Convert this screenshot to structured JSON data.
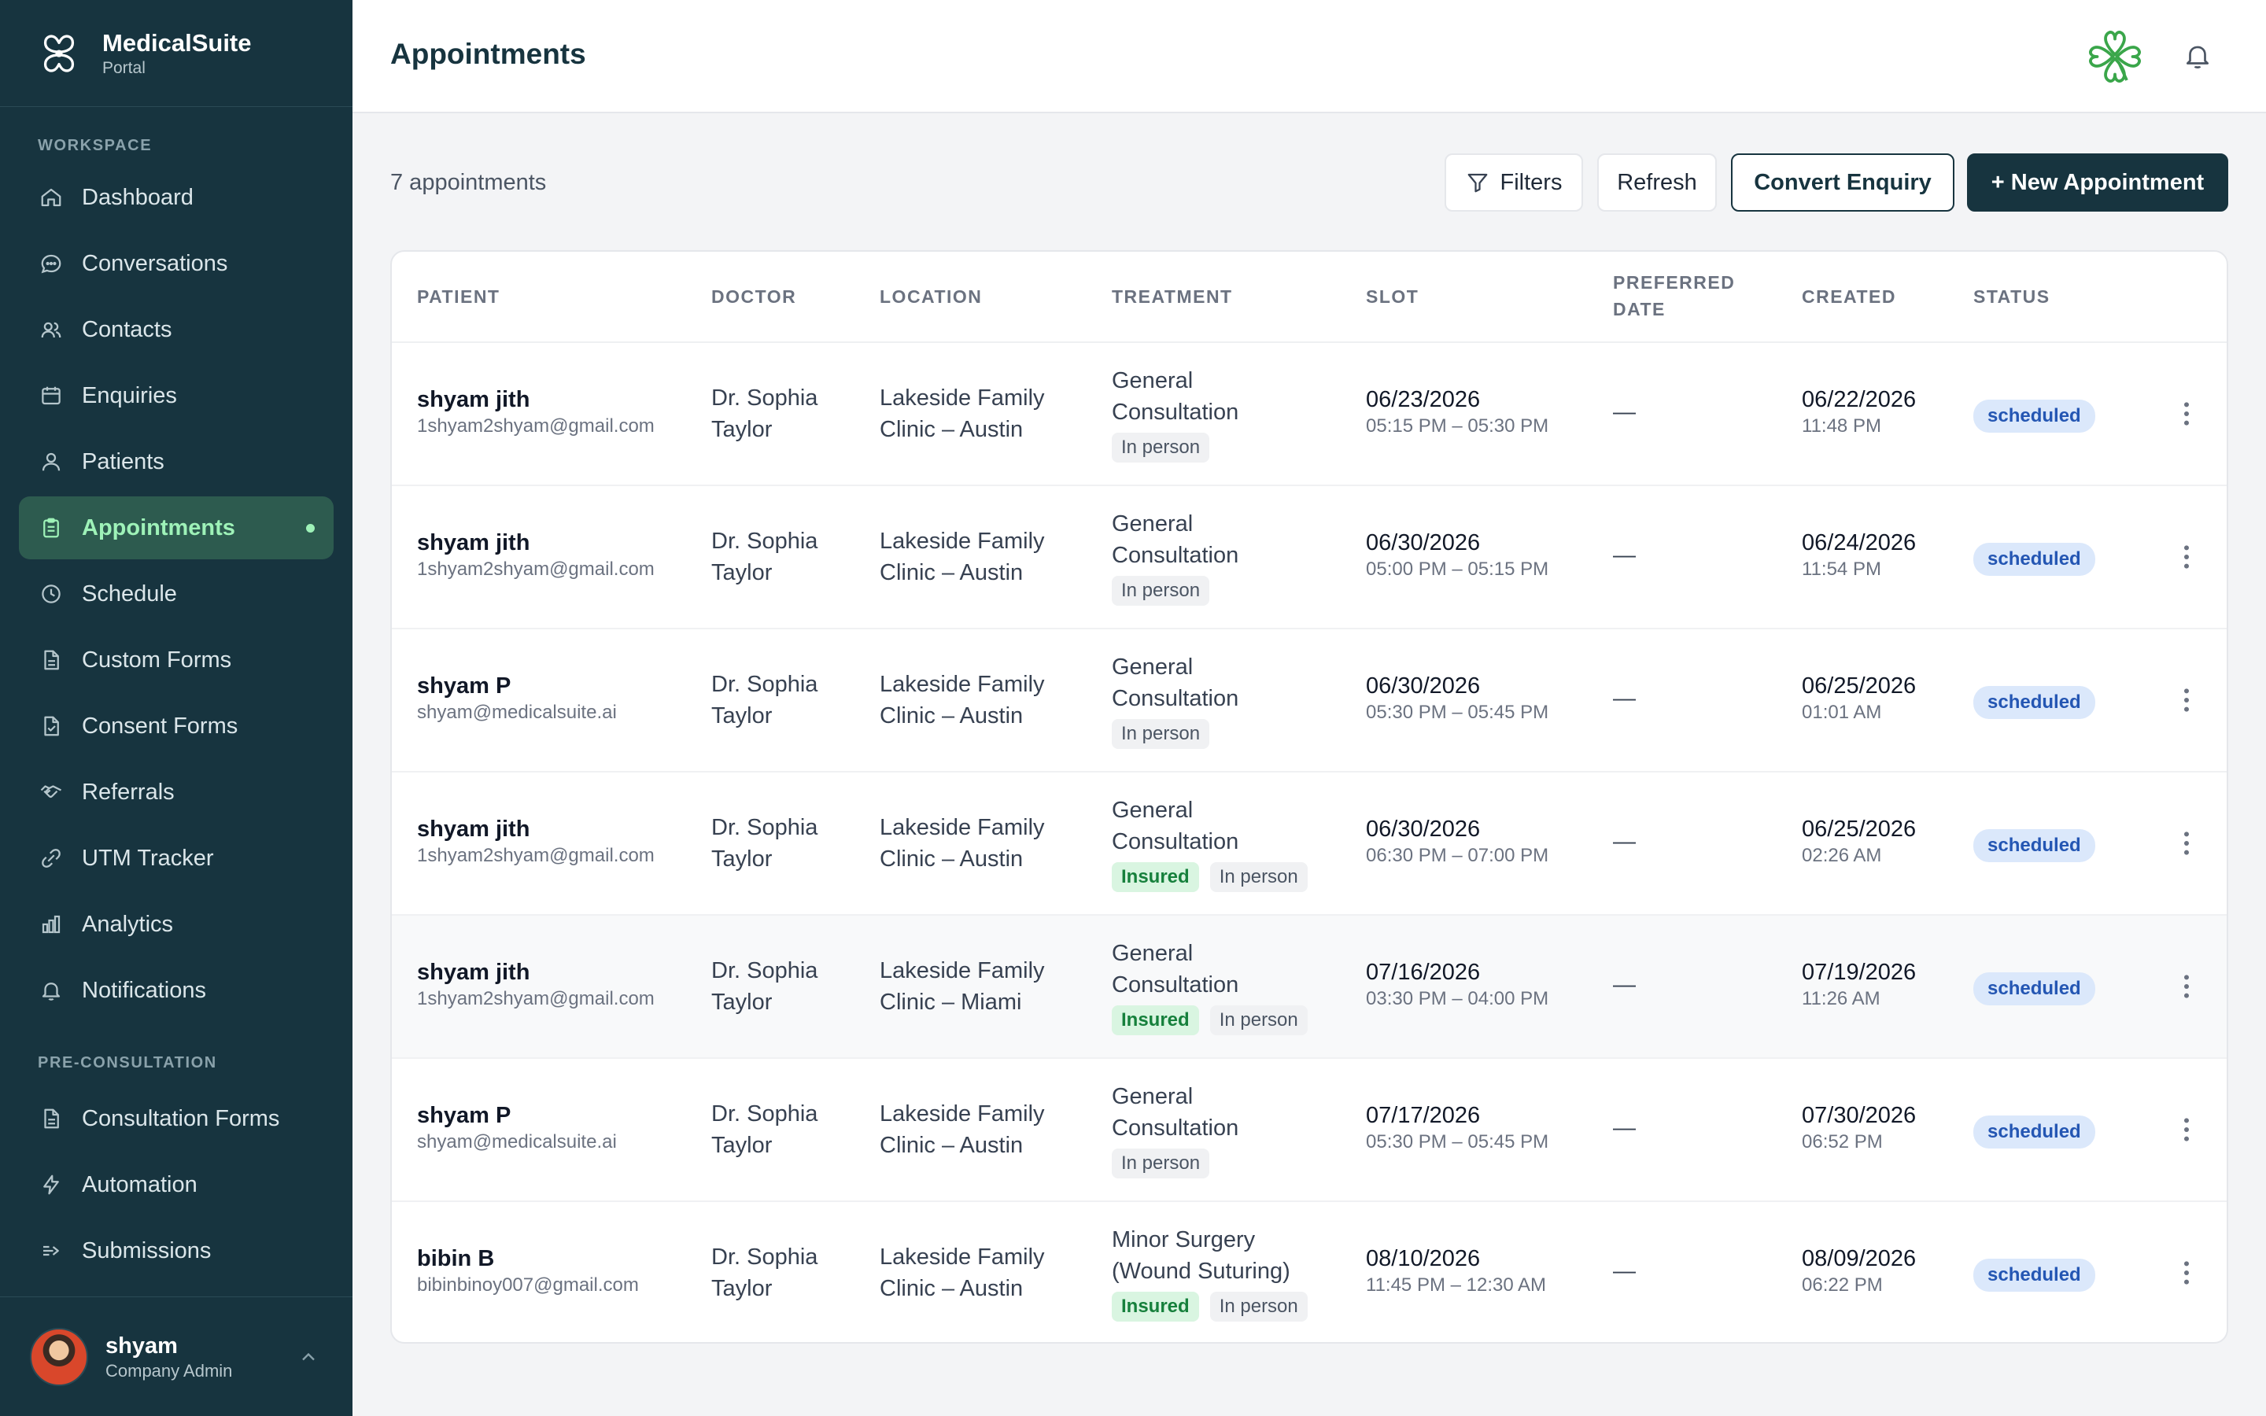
{
  "brand": {
    "name": "MedicalSuite",
    "sub": "Portal"
  },
  "sidebar": {
    "workspace_label": "WORKSPACE",
    "items": [
      {
        "label": "Dashboard",
        "icon": "home-icon"
      },
      {
        "label": "Conversations",
        "icon": "chat-icon"
      },
      {
        "label": "Contacts",
        "icon": "contacts-icon"
      },
      {
        "label": "Enquiries",
        "icon": "calendar-icon"
      },
      {
        "label": "Patients",
        "icon": "user-icon"
      },
      {
        "label": "Appointments",
        "icon": "clipboard-icon",
        "active": true
      },
      {
        "label": "Schedule",
        "icon": "clock-icon"
      },
      {
        "label": "Custom Forms",
        "icon": "document-icon"
      },
      {
        "label": "Consent Forms",
        "icon": "document-check-icon"
      },
      {
        "label": "Referrals",
        "icon": "handshake-icon"
      },
      {
        "label": "UTM Tracker",
        "icon": "tracker-icon"
      },
      {
        "label": "Analytics",
        "icon": "bar-chart-icon"
      },
      {
        "label": "Notifications",
        "icon": "bell-icon"
      }
    ],
    "preconsult_label": "PRE-CONSULTATION",
    "preconsult_items": [
      {
        "label": "Consultation Forms",
        "icon": "document-icon"
      },
      {
        "label": "Automation",
        "icon": "lightning-icon"
      },
      {
        "label": "Submissions",
        "icon": "send-icon"
      }
    ]
  },
  "user": {
    "name": "shyam",
    "role": "Company Admin"
  },
  "header": {
    "title": "Appointments"
  },
  "toolbar": {
    "count": "7 appointments",
    "filters": "Filters",
    "refresh": "Refresh",
    "convert": "Convert Enquiry",
    "new": "+ New Appointment"
  },
  "table": {
    "headers": {
      "patient": "PATIENT",
      "doctor": "DOCTOR",
      "location": "LOCATION",
      "treatment": "TREATMENT",
      "slot": "SLOT",
      "preferred_1": "PREFERRED",
      "preferred_2": "DATE",
      "created": "CREATED",
      "status": "STATUS"
    },
    "rows": [
      {
        "name": "shyam jith",
        "email": "1shyam2shyam@gmail.com",
        "doctor1": "Dr. Sophia",
        "doctor2": "Taylor",
        "loc1": "Lakeside Family",
        "loc2": "Clinic – Austin",
        "treat1": "General",
        "treat2": "Consultation",
        "insured": "",
        "inperson": "In person",
        "slot_date": "06/23/2026",
        "slot_time": "05:15 PM – 05:30 PM",
        "preferred": "—",
        "created_date": "06/22/2026",
        "created_time": "11:48 PM",
        "status": "scheduled"
      },
      {
        "name": "shyam jith",
        "email": "1shyam2shyam@gmail.com",
        "doctor1": "Dr. Sophia",
        "doctor2": "Taylor",
        "loc1": "Lakeside Family",
        "loc2": "Clinic – Austin",
        "treat1": "General",
        "treat2": "Consultation",
        "insured": "",
        "inperson": "In person",
        "slot_date": "06/30/2026",
        "slot_time": "05:00 PM – 05:15 PM",
        "preferred": "—",
        "created_date": "06/24/2026",
        "created_time": "11:54 PM",
        "status": "scheduled"
      },
      {
        "name": "shyam P",
        "email": "shyam@medicalsuite.ai",
        "doctor1": "Dr. Sophia",
        "doctor2": "Taylor",
        "loc1": "Lakeside Family",
        "loc2": "Clinic – Austin",
        "treat1": "General",
        "treat2": "Consultation",
        "insured": "",
        "inperson": "In person",
        "slot_date": "06/30/2026",
        "slot_time": "05:30 PM – 05:45 PM",
        "preferred": "—",
        "created_date": "06/25/2026",
        "created_time": "01:01 AM",
        "status": "scheduled"
      },
      {
        "name": "shyam jith",
        "email": "1shyam2shyam@gmail.com",
        "doctor1": "Dr. Sophia",
        "doctor2": "Taylor",
        "loc1": "Lakeside Family",
        "loc2": "Clinic – Austin",
        "treat1": "General",
        "treat2": "Consultation",
        "insured": "Insured",
        "inperson": "In person",
        "slot_date": "06/30/2026",
        "slot_time": "06:30 PM – 07:00 PM",
        "preferred": "—",
        "created_date": "06/25/2026",
        "created_time": "02:26 AM",
        "status": "scheduled"
      },
      {
        "name": "shyam jith",
        "email": "1shyam2shyam@gmail.com",
        "doctor1": "Dr. Sophia",
        "doctor2": "Taylor",
        "loc1": "Lakeside Family",
        "loc2": "Clinic – Miami",
        "treat1": "General",
        "treat2": "Consultation",
        "insured": "Insured",
        "inperson": "In person",
        "slot_date": "07/16/2026",
        "slot_time": "03:30 PM – 04:00 PM",
        "preferred": "—",
        "created_date": "07/19/2026",
        "created_time": "11:26 AM",
        "status": "scheduled"
      },
      {
        "name": "shyam P",
        "email": "shyam@medicalsuite.ai",
        "doctor1": "Dr. Sophia",
        "doctor2": "Taylor",
        "loc1": "Lakeside Family",
        "loc2": "Clinic – Austin",
        "treat1": "General",
        "treat2": "Consultation",
        "insured": "",
        "inperson": "In person",
        "slot_date": "07/17/2026",
        "slot_time": "05:30 PM – 05:45 PM",
        "preferred": "—",
        "created_date": "07/30/2026",
        "created_time": "06:52 PM",
        "status": "scheduled"
      },
      {
        "name": "bibin B",
        "email": "bibinbinoy007@gmail.com",
        "doctor1": "Dr. Sophia",
        "doctor2": "Taylor",
        "loc1": "Lakeside Family",
        "loc2": "Clinic – Austin",
        "treat1": "Minor Surgery",
        "treat2": "(Wound Suturing)",
        "insured": "Insured",
        "inperson": "In person",
        "slot_date": "08/10/2026",
        "slot_time": "11:45 PM – 12:30 AM",
        "preferred": "—",
        "created_date": "08/09/2026",
        "created_time": "06:22 PM",
        "status": "scheduled"
      }
    ]
  },
  "colors": {
    "sidebar_bg": "#17343f",
    "active_bg": "#2d5b4f",
    "active_fg": "#9ef2b8",
    "primary": "#17343f",
    "status_bg": "#dbe8fb",
    "status_fg": "#2456b3",
    "insured_bg": "#d9f5e1",
    "insured_fg": "#16803c",
    "logo_green": "#3aa64a"
  }
}
